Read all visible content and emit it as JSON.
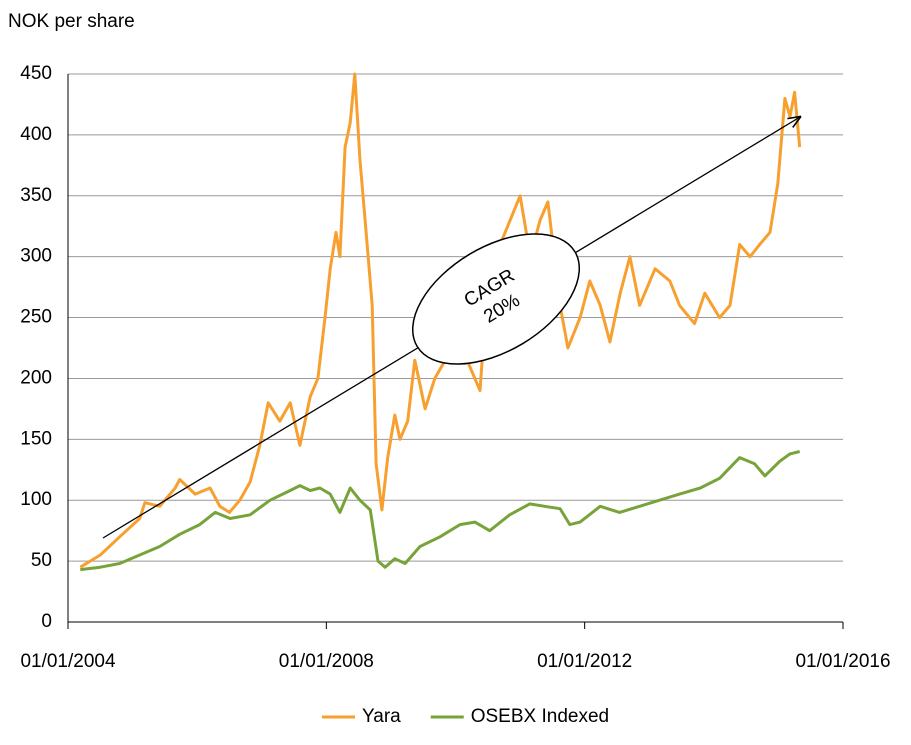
{
  "chart_data": {
    "type": "line",
    "y_label": "NOK per share",
    "annotation": [
      "CAGR",
      "20%"
    ],
    "xlim": [
      2004,
      2016
    ],
    "xticks": [
      {
        "value": 2004,
        "label": "01/01/2004"
      },
      {
        "value": 2008,
        "label": "01/01/2008"
      },
      {
        "value": 2012,
        "label": "01/01/2012"
      },
      {
        "value": 2016,
        "label": "01/01/2016"
      }
    ],
    "ylim": [
      0,
      450
    ],
    "yticks": [
      0,
      50,
      100,
      150,
      200,
      250,
      300,
      350,
      400,
      450
    ],
    "grid": true,
    "legend": "bottom",
    "series": [
      {
        "name": "Yara",
        "color": "#f7a030",
        "x": [
          2004.19,
          2004.5,
          2004.8,
          2005.11,
          2005.19,
          2005.42,
          2005.66,
          2005.73,
          2005.97,
          2006.2,
          2006.35,
          2006.5,
          2006.66,
          2006.82,
          2006.97,
          2007.1,
          2007.28,
          2007.44,
          2007.59,
          2007.75,
          2007.87,
          2007.98,
          2008.06,
          2008.15,
          2008.21,
          2008.29,
          2008.37,
          2008.44,
          2008.52,
          2008.6,
          2008.71,
          2008.77,
          2008.86,
          2008.95,
          2009.06,
          2009.14,
          2009.26,
          2009.37,
          2009.53,
          2009.68,
          2009.84,
          2009.99,
          2010.22,
          2010.38,
          2010.46,
          2010.61,
          2010.77,
          2011.0,
          2011.16,
          2011.31,
          2011.43,
          2011.62,
          2011.74,
          2011.93,
          2012.08,
          2012.24,
          2012.39,
          2012.55,
          2012.7,
          2012.85,
          2013.09,
          2013.32,
          2013.47,
          2013.7,
          2013.86,
          2014.09,
          2014.25,
          2014.4,
          2014.56,
          2014.71,
          2014.87,
          2014.99,
          2015.1,
          2015.18,
          2015.25,
          2015.33
        ],
        "values": [
          45,
          55,
          70,
          85,
          98,
          95,
          110,
          117,
          105,
          110,
          95,
          90,
          100,
          115,
          145,
          180,
          165,
          180,
          145,
          185,
          200,
          250,
          290,
          320,
          300,
          390,
          410,
          450,
          380,
          330,
          260,
          130,
          92,
          135,
          170,
          150,
          165,
          215,
          175,
          200,
          215,
          240,
          210,
          190,
          250,
          300,
          320,
          350,
          300,
          330,
          345,
          260,
          225,
          250,
          280,
          260,
          230,
          270,
          300,
          260,
          290,
          280,
          260,
          245,
          270,
          250,
          260,
          310,
          300,
          310,
          320,
          360,
          430,
          415,
          435,
          390
        ]
      },
      {
        "name": "OSEBX Indexed",
        "color": "#77a33a",
        "x": [
          2004.19,
          2004.5,
          2004.8,
          2005.11,
          2005.42,
          2005.73,
          2006.04,
          2006.28,
          2006.51,
          2006.82,
          2007.13,
          2007.44,
          2007.59,
          2007.75,
          2007.9,
          2008.06,
          2008.21,
          2008.37,
          2008.52,
          2008.68,
          2008.8,
          2008.91,
          2009.06,
          2009.22,
          2009.45,
          2009.76,
          2010.07,
          2010.3,
          2010.53,
          2010.84,
          2011.15,
          2011.38,
          2011.62,
          2011.77,
          2011.93,
          2012.24,
          2012.54,
          2012.85,
          2013.16,
          2013.47,
          2013.79,
          2014.09,
          2014.4,
          2014.63,
          2014.79,
          2015.02,
          2015.18,
          2015.33
        ],
        "values": [
          43,
          45,
          48,
          55,
          62,
          72,
          80,
          90,
          85,
          88,
          100,
          108,
          112,
          108,
          110,
          105,
          90,
          110,
          100,
          92,
          50,
          45,
          52,
          48,
          62,
          70,
          80,
          82,
          75,
          88,
          97,
          95,
          93,
          80,
          82,
          95,
          90,
          95,
          100,
          105,
          110,
          118,
          135,
          130,
          120,
          132,
          138,
          140
        ]
      }
    ]
  }
}
